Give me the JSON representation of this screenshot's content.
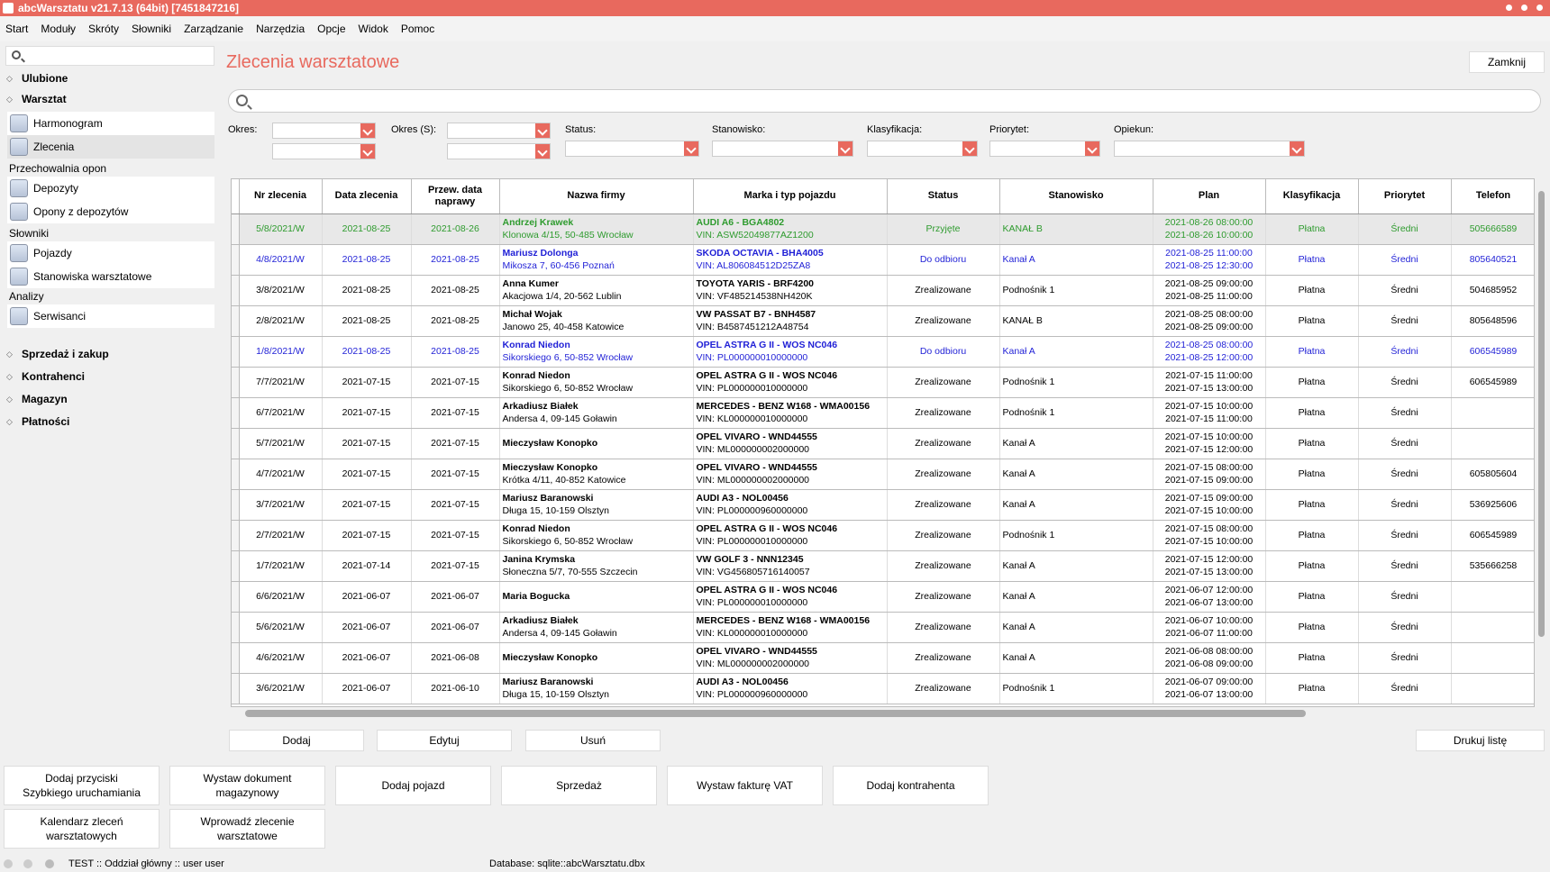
{
  "window": {
    "title": "abcWarsztatu v21.7.13 (64bit) [7451847216]"
  },
  "menu": [
    "Start",
    "Moduły",
    "Skróty",
    "Słowniki",
    "Zarządzanie",
    "Narzędzia",
    "Opcje",
    "Widok",
    "Pomoc"
  ],
  "sidebar": {
    "sections": {
      "ulubione": "Ulubione",
      "warsztat": "Warsztat",
      "sprzedaz": "Sprzedaż i zakup",
      "kontrahenci": "Kontrahenci",
      "magazyn": "Magazyn",
      "platnosci": "Płatności"
    },
    "items": {
      "harmonogram": "Harmonogram",
      "zlecenia": "Zlecenia",
      "depozyty": "Depozyty",
      "opony": "Opony z depozytów",
      "pojazdy": "Pojazdy",
      "stanowiska": "Stanowiska warsztatowe",
      "serwisanci": "Serwisanci"
    },
    "groups": {
      "przechowalnia": "Przechowalnia opon",
      "slowniki": "Słowniki",
      "analizy": "Analizy"
    }
  },
  "main": {
    "title": "Zlecenia warsztatowe",
    "close": "Zamknij",
    "filters": {
      "okres": "Okres:",
      "okres_s": "Okres (S):",
      "status": "Status:",
      "stanowisko": "Stanowisko:",
      "klasyfikacja": "Klasyfikacja:",
      "priorytet": "Priorytet:",
      "opiekun": "Opiekun:"
    },
    "columns": [
      "Nr zlecenia",
      "Data zlecenia",
      "Przew. data naprawy",
      "Nazwa firmy",
      "Marka i typ pojazdu",
      "Status",
      "Stanowisko",
      "Plan",
      "Klasyfikacja",
      "Priorytet",
      "Telefon"
    ],
    "rows": [
      {
        "nr": "5/8/2021/W",
        "data": "2021-08-25",
        "przew": "2021-08-26",
        "firma": "Andrzej Krawek",
        "adres": "Klonowa 4/15, 50-485 Wrocław",
        "pojazd": "AUDI A6 - BGA4802",
        "vin": "VIN: ASW52049877AZ1200",
        "status": "Przyjęte",
        "stanowisko": "KANAŁ B",
        "plan1": "2021-08-26 08:00:00",
        "plan2": "2021-08-26 10:00:00",
        "klas": "Płatna",
        "prio": "Średni",
        "tel": "505666589",
        "style": "green"
      },
      {
        "nr": "4/8/2021/W",
        "data": "2021-08-25",
        "przew": "2021-08-25",
        "firma": "Mariusz Dolonga",
        "adres": "Mikosza 7, 60-456 Poznań",
        "pojazd": "SKODA OCTAVIA - BHA4005",
        "vin": "VIN: AL806084512D25ZA8",
        "status": "Do odbioru",
        "stanowisko": "Kanał A",
        "plan1": "2021-08-25 11:00:00",
        "plan2": "2021-08-25 12:30:00",
        "klas": "Płatna",
        "prio": "Średni",
        "tel": "805640521",
        "style": "blue"
      },
      {
        "nr": "3/8/2021/W",
        "data": "2021-08-25",
        "przew": "2021-08-25",
        "firma": "Anna Kumer",
        "adres": "Akacjowa 1/4, 20-562 Lublin",
        "pojazd": "TOYOTA YARIS - BRF4200",
        "vin": "VIN: VF485214538NH420K",
        "status": "Zrealizowane",
        "stanowisko": "Podnośnik 1",
        "plan1": "2021-08-25 09:00:00",
        "plan2": "2021-08-25 11:00:00",
        "klas": "Płatna",
        "prio": "Średni",
        "tel": "504685952",
        "style": ""
      },
      {
        "nr": "2/8/2021/W",
        "data": "2021-08-25",
        "przew": "2021-08-25",
        "firma": "Michał Wojak",
        "adres": "Janowo 25, 40-458 Katowice",
        "pojazd": "VW PASSAT B7 - BNH4587",
        "vin": "VIN: B4587451212A48754",
        "status": "Zrealizowane",
        "stanowisko": "KANAŁ B",
        "plan1": "2021-08-25 08:00:00",
        "plan2": "2021-08-25 09:00:00",
        "klas": "Płatna",
        "prio": "Średni",
        "tel": "805648596",
        "style": ""
      },
      {
        "nr": "1/8/2021/W",
        "data": "2021-08-25",
        "przew": "2021-08-25",
        "firma": "Konrad Niedon",
        "adres": "Sikorskiego 6, 50-852 Wrocław",
        "pojazd": "OPEL ASTRA G II - WOS NC046",
        "vin": "VIN: PL000000010000000",
        "status": "Do odbioru",
        "stanowisko": "Kanał A",
        "plan1": "2021-08-25 08:00:00",
        "plan2": "2021-08-25 12:00:00",
        "klas": "Płatna",
        "prio": "Średni",
        "tel": "606545989",
        "style": "blue"
      },
      {
        "nr": "7/7/2021/W",
        "data": "2021-07-15",
        "przew": "2021-07-15",
        "firma": "Konrad Niedon",
        "adres": "Sikorskiego 6, 50-852 Wrocław",
        "pojazd": "OPEL ASTRA G II - WOS NC046",
        "vin": "VIN: PL000000010000000",
        "status": "Zrealizowane",
        "stanowisko": "Podnośnik 1",
        "plan1": "2021-07-15 11:00:00",
        "plan2": "2021-07-15 13:00:00",
        "klas": "Płatna",
        "prio": "Średni",
        "tel": "606545989",
        "style": ""
      },
      {
        "nr": "6/7/2021/W",
        "data": "2021-07-15",
        "przew": "2021-07-15",
        "firma": "Arkadiusz Białek",
        "adres": "Andersa 4, 09-145 Goławin",
        "pojazd": "MERCEDES - BENZ W168 - WMA00156",
        "vin": "VIN: KL000000010000000",
        "status": "Zrealizowane",
        "stanowisko": "Podnośnik 1",
        "plan1": "2021-07-15 10:00:00",
        "plan2": "2021-07-15 11:00:00",
        "klas": "Płatna",
        "prio": "Średni",
        "tel": "",
        "style": ""
      },
      {
        "nr": "5/7/2021/W",
        "data": "2021-07-15",
        "przew": "2021-07-15",
        "firma": "Mieczysław Konopko",
        "adres": "",
        "pojazd": "OPEL VIVARO - WND44555",
        "vin": "VIN: ML000000002000000",
        "status": "Zrealizowane",
        "stanowisko": "Kanał A",
        "plan1": "2021-07-15 10:00:00",
        "plan2": "2021-07-15 12:00:00",
        "klas": "Płatna",
        "prio": "Średni",
        "tel": "",
        "style": ""
      },
      {
        "nr": "4/7/2021/W",
        "data": "2021-07-15",
        "przew": "2021-07-15",
        "firma": "Mieczysław Konopko",
        "adres": "Krótka 4/11, 40-852 Katowice",
        "pojazd": "OPEL VIVARO - WND44555",
        "vin": "VIN: ML000000002000000",
        "status": "Zrealizowane",
        "stanowisko": "Kanał A",
        "plan1": "2021-07-15 08:00:00",
        "plan2": "2021-07-15 09:00:00",
        "klas": "Płatna",
        "prio": "Średni",
        "tel": "605805604",
        "style": ""
      },
      {
        "nr": "3/7/2021/W",
        "data": "2021-07-15",
        "przew": "2021-07-15",
        "firma": "Mariusz Baranowski",
        "adres": "Długa 15, 10-159 Olsztyn",
        "pojazd": "AUDI A3 - NOL00456",
        "vin": "VIN: PL000000960000000",
        "status": "Zrealizowane",
        "stanowisko": "Kanał A",
        "plan1": "2021-07-15 09:00:00",
        "plan2": "2021-07-15 10:00:00",
        "klas": "Płatna",
        "prio": "Średni",
        "tel": "536925606",
        "style": ""
      },
      {
        "nr": "2/7/2021/W",
        "data": "2021-07-15",
        "przew": "2021-07-15",
        "firma": "Konrad Niedon",
        "adres": "Sikorskiego 6, 50-852 Wrocław",
        "pojazd": "OPEL ASTRA G II - WOS NC046",
        "vin": "VIN: PL000000010000000",
        "status": "Zrealizowane",
        "stanowisko": "Podnośnik 1",
        "plan1": "2021-07-15 08:00:00",
        "plan2": "2021-07-15 10:00:00",
        "klas": "Płatna",
        "prio": "Średni",
        "tel": "606545989",
        "style": ""
      },
      {
        "nr": "1/7/2021/W",
        "data": "2021-07-14",
        "przew": "2021-07-15",
        "firma": "Janina Krymska",
        "adres": "Słoneczna 5/7, 70-555 Szczecin",
        "pojazd": "VW GOLF 3 - NNN12345",
        "vin": "VIN: VG456805716140057",
        "status": "Zrealizowane",
        "stanowisko": "Kanał A",
        "plan1": "2021-07-15 12:00:00",
        "plan2": "2021-07-15 13:00:00",
        "klas": "Płatna",
        "prio": "Średni",
        "tel": "535666258",
        "style": ""
      },
      {
        "nr": "6/6/2021/W",
        "data": "2021-06-07",
        "przew": "2021-06-07",
        "firma": "Maria Bogucka",
        "adres": "",
        "pojazd": "OPEL ASTRA G II - WOS NC046",
        "vin": "VIN: PL000000010000000",
        "status": "Zrealizowane",
        "stanowisko": "Kanał A",
        "plan1": "2021-06-07 12:00:00",
        "plan2": "2021-06-07 13:00:00",
        "klas": "Płatna",
        "prio": "Średni",
        "tel": "",
        "style": ""
      },
      {
        "nr": "5/6/2021/W",
        "data": "2021-06-07",
        "przew": "2021-06-07",
        "firma": "Arkadiusz Białek",
        "adres": "Andersa 4, 09-145 Goławin",
        "pojazd": "MERCEDES - BENZ W168 - WMA00156",
        "vin": "VIN: KL000000010000000",
        "status": "Zrealizowane",
        "stanowisko": "Kanał A",
        "plan1": "2021-06-07 10:00:00",
        "plan2": "2021-06-07 11:00:00",
        "klas": "Płatna",
        "prio": "Średni",
        "tel": "",
        "style": ""
      },
      {
        "nr": "4/6/2021/W",
        "data": "2021-06-07",
        "przew": "2021-06-08",
        "firma": "Mieczysław Konopko",
        "adres": "",
        "pojazd": "OPEL VIVARO - WND44555",
        "vin": "VIN: ML000000002000000",
        "status": "Zrealizowane",
        "stanowisko": "Kanał A",
        "plan1": "2021-06-08 08:00:00",
        "plan2": "2021-06-08 09:00:00",
        "klas": "Płatna",
        "prio": "Średni",
        "tel": "",
        "style": ""
      },
      {
        "nr": "3/6/2021/W",
        "data": "2021-06-07",
        "przew": "2021-06-10",
        "firma": "Mariusz Baranowski",
        "adres": "Długa 15, 10-159 Olsztyn",
        "pojazd": "AUDI A3 - NOL00456",
        "vin": "VIN: PL000000960000000",
        "status": "Zrealizowane",
        "stanowisko": "Podnośnik 1",
        "plan1": "2021-06-07 09:00:00",
        "plan2": "2021-06-07 13:00:00",
        "klas": "Płatna",
        "prio": "Średni",
        "tel": "",
        "style": ""
      }
    ],
    "buttons": {
      "dodaj": "Dodaj",
      "edytuj": "Edytuj",
      "usun": "Usuń",
      "drukuj": "Drukuj listę"
    }
  },
  "quick": [
    "Dodaj przyciski\nSzybkiego uruchamiania",
    "Wystaw dokument\nmagazynowy",
    "Dodaj pojazd",
    "Sprzedaż",
    "Wystaw fakturę VAT",
    "Dodaj kontrahenta",
    "Kalendarz zleceń\nwarsztatowych",
    "Wprowadź zlecenie\nwarsztatowe"
  ],
  "statusbar": {
    "left": "TEST :: Oddział główny :: user user",
    "db": "Database: sqlite::abcWarsztatu.dbx"
  }
}
